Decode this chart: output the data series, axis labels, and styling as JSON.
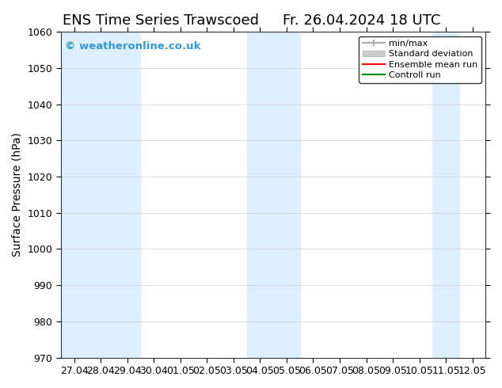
{
  "title_left": "ENS Time Series Trawscoed",
  "title_right": "Fr. 26.04.2024 18 UTC",
  "ylabel": "Surface Pressure (hPa)",
  "ylim": [
    970,
    1060
  ],
  "yticks": [
    970,
    980,
    990,
    1000,
    1010,
    1020,
    1030,
    1040,
    1050,
    1060
  ],
  "x_labels": [
    "27.04",
    "28.04",
    "29.04",
    "30.04",
    "01.05",
    "02.05",
    "03.05",
    "04.05",
    "05.05",
    "06.05",
    "07.05",
    "08.05",
    "09.05",
    "10.05",
    "11.05",
    "12.05"
  ],
  "shaded_columns": [
    0,
    1,
    2,
    7,
    8,
    14
  ],
  "shaded_color": "#ddeeff",
  "bg_color": "#ffffff",
  "watermark": "© weatheronline.co.uk",
  "watermark_color": "#3399cc",
  "legend_entries": [
    {
      "label": "min/max",
      "color": "#aaaaaa",
      "type": "errorbar"
    },
    {
      "label": "Standard deviation",
      "color": "#cccccc",
      "type": "bar"
    },
    {
      "label": "Ensemble mean run",
      "color": "#ff0000",
      "type": "line"
    },
    {
      "label": "Controll run",
      "color": "#008800",
      "type": "line"
    }
  ],
  "title_fontsize": 13,
  "label_fontsize": 10,
  "tick_fontsize": 9
}
